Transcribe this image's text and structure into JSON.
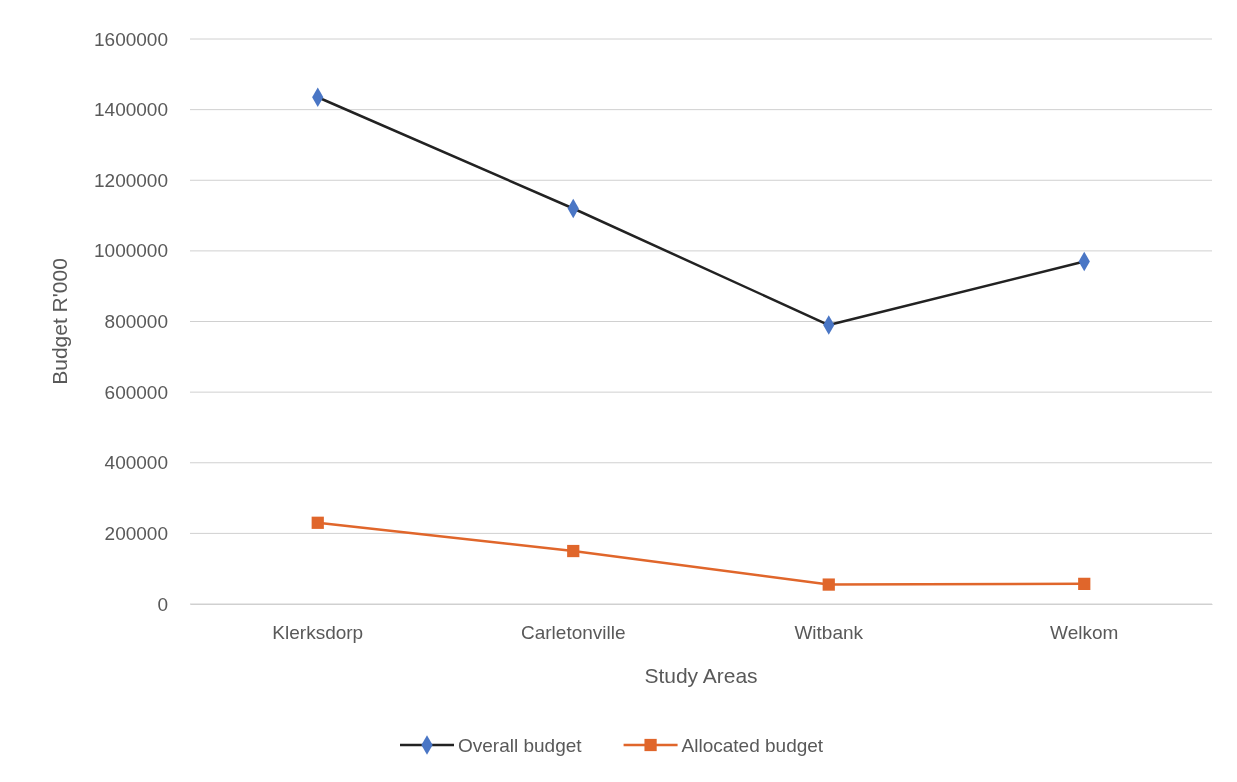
{
  "chart_data": {
    "type": "line",
    "xlabel": "Study Areas",
    "ylabel": "Budget R'000",
    "categories": [
      "Klerksdorp",
      "Carletonville",
      "Witbank",
      "Welkom"
    ],
    "series": [
      {
        "name": "Overall budget",
        "color": "#4a76c5",
        "marker": "diamond",
        "values": [
          1435000,
          1120000,
          790000,
          970000
        ]
      },
      {
        "name": "Allocated budget",
        "color": "#e0662b",
        "marker": "square",
        "values": [
          230000,
          150000,
          55000,
          57000
        ]
      }
    ],
    "ylim": [
      0,
      1600000
    ],
    "yticks": [
      0,
      200000,
      400000,
      600000,
      800000,
      1000000,
      1200000,
      1400000,
      1600000
    ],
    "grid": "y",
    "legend": "bottom"
  }
}
